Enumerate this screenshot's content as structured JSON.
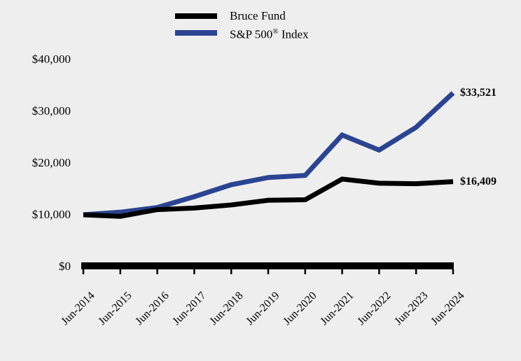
{
  "canvas": {
    "background": "#eeeeee",
    "text_color": "#000000"
  },
  "legend": {
    "position": "top-center",
    "items": [
      {
        "label": "Bruce Fund",
        "sup": "",
        "label_after": "",
        "color": "#000000"
      },
      {
        "label": "S&P 500",
        "sup": "®",
        "label_after": " Index",
        "color": "#2b4492"
      }
    ]
  },
  "chart_data": {
    "type": "line",
    "title": "",
    "xlabel": "",
    "ylabel": "",
    "x_categories": [
      "Jun-2014",
      "Jun-2015",
      "Jun-2016",
      "Jun-2017",
      "Jun-2018",
      "Jun-2019",
      "Jun-2020",
      "Jun-2021",
      "Jun-2022",
      "Jun-2023",
      "Jun-2024"
    ],
    "series": [
      {
        "name": "S&P 500® Index",
        "color": "#2b4492",
        "values": [
          10000,
          10500,
          11400,
          13500,
          15800,
          17200,
          17600,
          25400,
          22500,
          26900,
          33521
        ],
        "end_label": "$33,521"
      },
      {
        "name": "Bruce Fund",
        "color": "#000000",
        "values": [
          10000,
          9700,
          11000,
          11300,
          11900,
          12800,
          12900,
          16900,
          16100,
          16000,
          16409
        ],
        "end_label": "$16,409"
      }
    ],
    "y_ticks": [
      {
        "value": 40000,
        "label": "$40,000"
      },
      {
        "value": 30000,
        "label": "$30,000"
      },
      {
        "value": 20000,
        "label": "$20,000"
      },
      {
        "value": 10000,
        "label": "$10,000"
      },
      {
        "value": 0,
        "label": "$0"
      }
    ],
    "ylim": [
      0,
      40000
    ],
    "grid": false,
    "legend_position": "top",
    "axis_color": "#000000",
    "line_width": 7
  }
}
